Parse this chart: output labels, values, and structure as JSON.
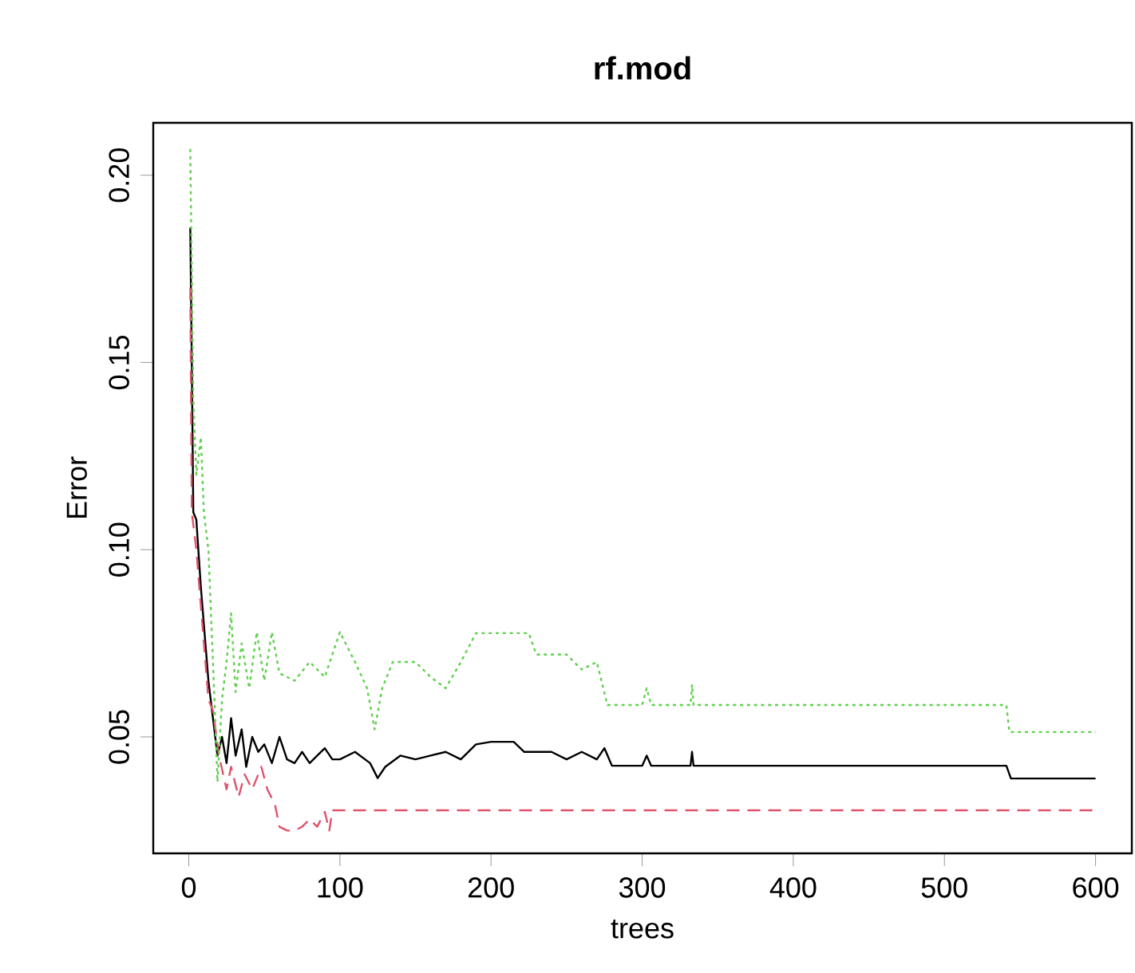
{
  "chart_data": {
    "type": "line",
    "title": "rf.mod",
    "xlabel": "trees",
    "ylabel": "Error",
    "xlim": [
      -23.5,
      624
    ],
    "ylim": [
      0.0189,
      0.214
    ],
    "xticks": [
      0,
      100,
      200,
      300,
      400,
      500,
      600
    ],
    "yticks": [
      {
        "value": 0.05,
        "label": "0.05"
      },
      {
        "value": 0.1,
        "label": "0.10"
      },
      {
        "value": 0.15,
        "label": "0.15"
      },
      {
        "value": 0.2,
        "label": "0.20"
      }
    ],
    "marker": "none",
    "series": [
      {
        "color": "#000000",
        "line_style": "solid",
        "x": [
          1,
          2,
          3,
          5,
          8,
          10,
          13,
          16,
          19,
          22,
          25,
          28,
          31,
          35,
          38,
          42,
          46,
          50,
          55,
          60,
          65,
          70,
          75,
          80,
          85,
          90,
          95,
          100,
          110,
          120,
          125,
          130,
          140,
          150,
          160,
          170,
          180,
          190,
          200,
          215,
          222,
          240,
          250,
          260,
          270,
          275,
          280,
          300,
          303,
          306,
          332,
          333,
          334,
          541,
          544,
          600
        ],
        "values": [
          0.186,
          0.15,
          0.11,
          0.108,
          0.09,
          0.08,
          0.065,
          0.055,
          0.045,
          0.05,
          0.043,
          0.055,
          0.045,
          0.052,
          0.042,
          0.05,
          0.046,
          0.048,
          0.043,
          0.05,
          0.044,
          0.043,
          0.046,
          0.043,
          0.045,
          0.047,
          0.044,
          0.044,
          0.046,
          0.043,
          0.039,
          0.042,
          0.045,
          0.044,
          0.045,
          0.046,
          0.044,
          0.048,
          0.0487,
          0.0487,
          0.046,
          0.046,
          0.044,
          0.046,
          0.044,
          0.047,
          0.0423,
          0.0423,
          0.045,
          0.0423,
          0.0423,
          0.046,
          0.0423,
          0.0423,
          0.0389,
          0.0389
        ]
      },
      {
        "color": "#df536b",
        "line_style": "dashed",
        "x": [
          1,
          2,
          5,
          8,
          10,
          13,
          16,
          20,
          25,
          28,
          33,
          37,
          42,
          48,
          52,
          57,
          60,
          65,
          70,
          75,
          80,
          85,
          90,
          93,
          95,
          600
        ],
        "values": [
          0.17,
          0.11,
          0.1,
          0.085,
          0.075,
          0.06,
          0.057,
          0.045,
          0.036,
          0.042,
          0.034,
          0.04,
          0.036,
          0.042,
          0.036,
          0.032,
          0.026,
          0.025,
          0.025,
          0.026,
          0.028,
          0.026,
          0.03,
          0.025,
          0.0304,
          0.0304
        ]
      },
      {
        "color": "#61d04f",
        "line_style": "dotted",
        "x": [
          1,
          3,
          5,
          8,
          10,
          13,
          15,
          17,
          19,
          22,
          25,
          28,
          31,
          35,
          40,
          45,
          50,
          55,
          60,
          70,
          80,
          90,
          100,
          110,
          118,
          123,
          128,
          135,
          150,
          160,
          170,
          180,
          190,
          225,
          230,
          250,
          260,
          270,
          277,
          300,
          303,
          306,
          332,
          333,
          334,
          541,
          543,
          600
        ],
        "values": [
          0.207,
          0.14,
          0.12,
          0.13,
          0.11,
          0.1,
          0.08,
          0.06,
          0.038,
          0.06,
          0.07,
          0.083,
          0.062,
          0.075,
          0.063,
          0.078,
          0.065,
          0.078,
          0.067,
          0.065,
          0.07,
          0.066,
          0.078,
          0.07,
          0.063,
          0.052,
          0.063,
          0.07,
          0.07,
          0.066,
          0.063,
          0.07,
          0.0777,
          0.0777,
          0.072,
          0.072,
          0.068,
          0.07,
          0.0585,
          0.0585,
          0.063,
          0.0585,
          0.0585,
          0.064,
          0.0585,
          0.0585,
          0.0513,
          0.0513
        ]
      }
    ]
  }
}
